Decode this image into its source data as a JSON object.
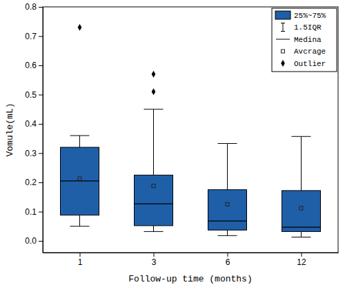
{
  "chart_data": {
    "type": "box",
    "x_label": "Follow-up time (months)",
    "y_label": "Vomule(mL)",
    "categories": [
      "1",
      "3",
      "6",
      "12"
    ],
    "q1": [
      0.088,
      0.052,
      0.037,
      0.032
    ],
    "median": [
      0.205,
      0.127,
      0.068,
      0.047
    ],
    "q3": [
      0.32,
      0.225,
      0.175,
      0.172
    ],
    "mean": [
      0.213,
      0.188,
      0.125,
      0.112
    ],
    "whisker_low": [
      0.05,
      0.032,
      0.018,
      0.013
    ],
    "whisker_high": [
      0.36,
      0.45,
      0.333,
      0.357
    ],
    "outliers": [
      [
        0.73
      ],
      [
        0.51,
        0.57
      ],
      [],
      []
    ],
    "color": "#1f5fa8",
    "ylim": [
      -0.04,
      0.8
    ],
    "yticks": [
      {
        "value": 0,
        "label": "0.0"
      },
      0.1,
      0.2,
      0.3,
      0.4,
      0.5,
      0.6,
      0.7,
      0.8
    ],
    "legend": "upper right",
    "legend_labels": [
      "25%~75%",
      "1.5IQR",
      "Medina",
      "Avcrage",
      "Outlier"
    ]
  }
}
